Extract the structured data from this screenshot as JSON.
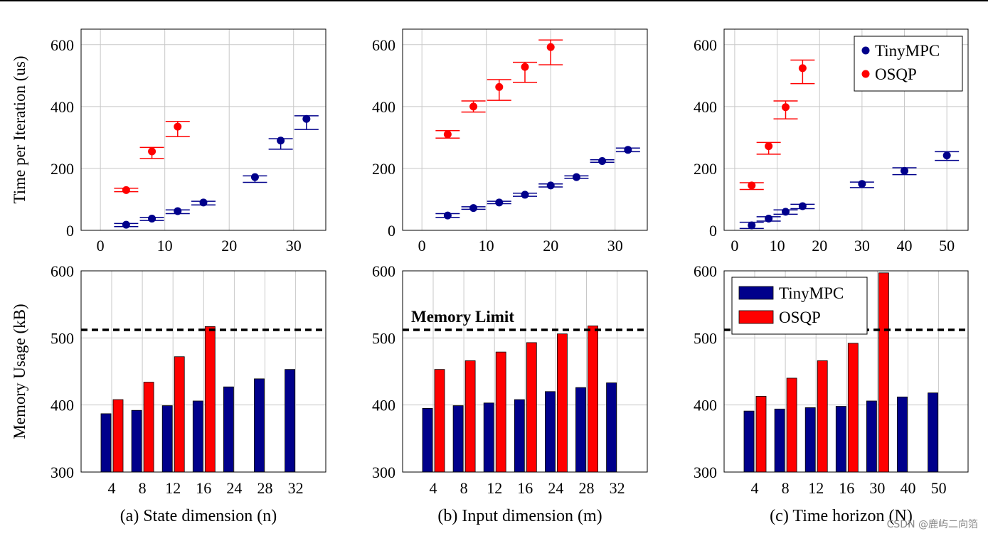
{
  "colors": {
    "tinympc": "#00008b",
    "osqp": "#ff0000",
    "grid": "#c8c8c8",
    "axis": "#000000",
    "limit": "#000000"
  },
  "watermark": "CSDN @鹿屿二向箔",
  "memory_limit_label": "Memory Limit",
  "chart_data": [
    {
      "id": "time-state",
      "type": "scatter",
      "ylabel": "Time per Iteration (us)",
      "xlim": [
        -3,
        35
      ],
      "ylim": [
        0,
        650
      ],
      "xticks": [
        0,
        10,
        20,
        30
      ],
      "yticks": [
        0,
        200,
        400,
        600
      ],
      "grid": true,
      "series": [
        {
          "name": "TinyMPC",
          "x": [
            4,
            8,
            12,
            16,
            24,
            28,
            32
          ],
          "y": [
            18,
            38,
            62,
            90,
            172,
            290,
            360
          ],
          "err_lo": [
            12,
            32,
            54,
            82,
            155,
            262,
            326
          ],
          "err_hi": [
            22,
            42,
            66,
            94,
            176,
            296,
            370
          ]
        },
        {
          "name": "OSQP",
          "x": [
            4,
            8,
            12
          ],
          "y": [
            130,
            255,
            335
          ],
          "err_lo": [
            125,
            232,
            303
          ],
          "err_hi": [
            136,
            268,
            352
          ]
        }
      ]
    },
    {
      "id": "time-input",
      "type": "scatter",
      "xlim": [
        -3,
        35
      ],
      "ylim": [
        0,
        650
      ],
      "xticks": [
        0,
        10,
        20,
        30
      ],
      "yticks": [
        0,
        200,
        400,
        600
      ],
      "grid": true,
      "series": [
        {
          "name": "TinyMPC",
          "x": [
            4,
            8,
            12,
            16,
            20,
            24,
            28,
            32
          ],
          "y": [
            48,
            72,
            90,
            115,
            145,
            172,
            224,
            260
          ],
          "err_lo": [
            42,
            68,
            86,
            110,
            140,
            168,
            220,
            254
          ],
          "err_hi": [
            54,
            76,
            94,
            120,
            150,
            176,
            228,
            266
          ]
        },
        {
          "name": "OSQP",
          "x": [
            4,
            8,
            12,
            16,
            20
          ],
          "y": [
            310,
            400,
            463,
            528,
            592
          ],
          "err_lo": [
            298,
            382,
            420,
            478,
            535
          ],
          "err_hi": [
            322,
            418,
            487,
            543,
            615
          ]
        }
      ]
    },
    {
      "id": "time-horizon",
      "type": "scatter",
      "xlim": [
        -2.5,
        55
      ],
      "ylim": [
        0,
        650
      ],
      "xticks": [
        0,
        10,
        20,
        30,
        40,
        50
      ],
      "yticks": [
        0,
        200,
        400,
        600
      ],
      "grid": true,
      "legend": "top-right",
      "series": [
        {
          "name": "TinyMPC",
          "x": [
            4,
            8,
            12,
            16,
            30,
            40,
            50
          ],
          "y": [
            16,
            38,
            60,
            78,
            150,
            192,
            242
          ],
          "err_lo": [
            6,
            30,
            52,
            70,
            138,
            180,
            226
          ],
          "err_hi": [
            26,
            44,
            66,
            84,
            156,
            202,
            254
          ]
        },
        {
          "name": "OSQP",
          "x": [
            4,
            8,
            12,
            16
          ],
          "y": [
            145,
            272,
            398,
            524
          ],
          "err_lo": [
            132,
            246,
            360,
            474
          ],
          "err_hi": [
            154,
            284,
            418,
            550
          ]
        }
      ]
    },
    {
      "id": "mem-state",
      "type": "bar",
      "ylabel": "Memory Usage (kB)",
      "xlabel": "(a) State dimension (n)",
      "categories": [
        "4",
        "8",
        "12",
        "16",
        "24",
        "28",
        "32"
      ],
      "ylim": [
        300,
        600
      ],
      "yticks": [
        300,
        400,
        500,
        600
      ],
      "memory_limit": 512,
      "grid": true,
      "series": [
        {
          "name": "TinyMPC",
          "values": [
            387,
            392,
            399,
            406,
            427,
            439,
            453
          ]
        },
        {
          "name": "OSQP",
          "values": [
            408,
            434,
            472,
            517,
            null,
            null,
            null
          ]
        }
      ]
    },
    {
      "id": "mem-input",
      "type": "bar",
      "xlabel": "(b) Input dimension (m)",
      "categories": [
        "4",
        "8",
        "12",
        "16",
        "24",
        "28",
        "32"
      ],
      "ylim": [
        300,
        600
      ],
      "yticks": [
        300,
        400,
        500,
        600
      ],
      "memory_limit": 512,
      "grid": true,
      "series": [
        {
          "name": "TinyMPC",
          "values": [
            395,
            399,
            403,
            408,
            420,
            426,
            433
          ]
        },
        {
          "name": "OSQP",
          "values": [
            453,
            466,
            479,
            493,
            506,
            518,
            null
          ]
        }
      ]
    },
    {
      "id": "mem-horizon",
      "type": "bar",
      "xlabel": "(c) Time horizon (N)",
      "categories": [
        "4",
        "8",
        "12",
        "16",
        "30",
        "40",
        "50"
      ],
      "ylim": [
        300,
        600
      ],
      "yticks": [
        300,
        400,
        500,
        600
      ],
      "memory_limit": 512,
      "grid": true,
      "legend": "top-left",
      "series": [
        {
          "name": "TinyMPC",
          "values": [
            391,
            394,
            396,
            398,
            406,
            412,
            418
          ]
        },
        {
          "name": "OSQP",
          "values": [
            413,
            440,
            466,
            492,
            597,
            null,
            null
          ]
        }
      ]
    }
  ]
}
